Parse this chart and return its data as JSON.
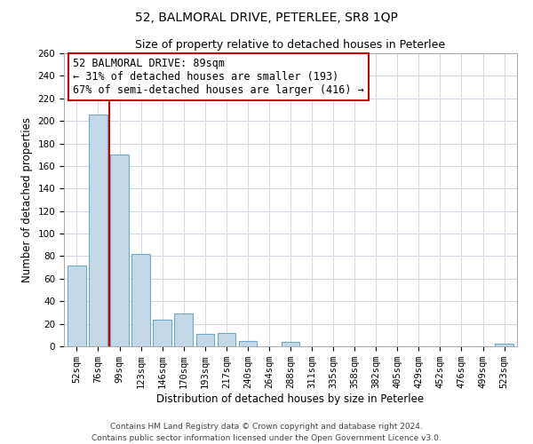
{
  "title": "52, BALMORAL DRIVE, PETERLEE, SR8 1QP",
  "subtitle": "Size of property relative to detached houses in Peterlee",
  "xlabel": "Distribution of detached houses by size in Peterlee",
  "ylabel": "Number of detached properties",
  "bar_labels": [
    "52sqm",
    "76sqm",
    "99sqm",
    "123sqm",
    "146sqm",
    "170sqm",
    "193sqm",
    "217sqm",
    "240sqm",
    "264sqm",
    "288sqm",
    "311sqm",
    "335sqm",
    "358sqm",
    "382sqm",
    "405sqm",
    "429sqm",
    "452sqm",
    "476sqm",
    "499sqm",
    "523sqm"
  ],
  "bar_values": [
    72,
    206,
    170,
    82,
    24,
    29,
    11,
    12,
    5,
    0,
    4,
    0,
    0,
    0,
    0,
    0,
    0,
    0,
    0,
    0,
    2
  ],
  "bar_color": "#c5d8e8",
  "bar_edge_color": "#6fa8c8",
  "ylim": [
    0,
    260
  ],
  "yticks": [
    0,
    20,
    40,
    60,
    80,
    100,
    120,
    140,
    160,
    180,
    200,
    220,
    240,
    260
  ],
  "marker_color": "#cc0000",
  "annotation_text": "52 BALMORAL DRIVE: 89sqm\n← 31% of detached houses are smaller (193)\n67% of semi-detached houses are larger (416) →",
  "annotation_box_color": "#ffffff",
  "annotation_box_edge_color": "#cc0000",
  "footer_line1": "Contains HM Land Registry data © Crown copyright and database right 2024.",
  "footer_line2": "Contains public sector information licensed under the Open Government Licence v3.0.",
  "bg_color": "#ffffff",
  "grid_color": "#d0d8e8",
  "title_fontsize": 10,
  "subtitle_fontsize": 9,
  "axis_label_fontsize": 8.5,
  "tick_fontsize": 7.5,
  "annotation_fontsize": 8.5,
  "footer_fontsize": 6.5
}
